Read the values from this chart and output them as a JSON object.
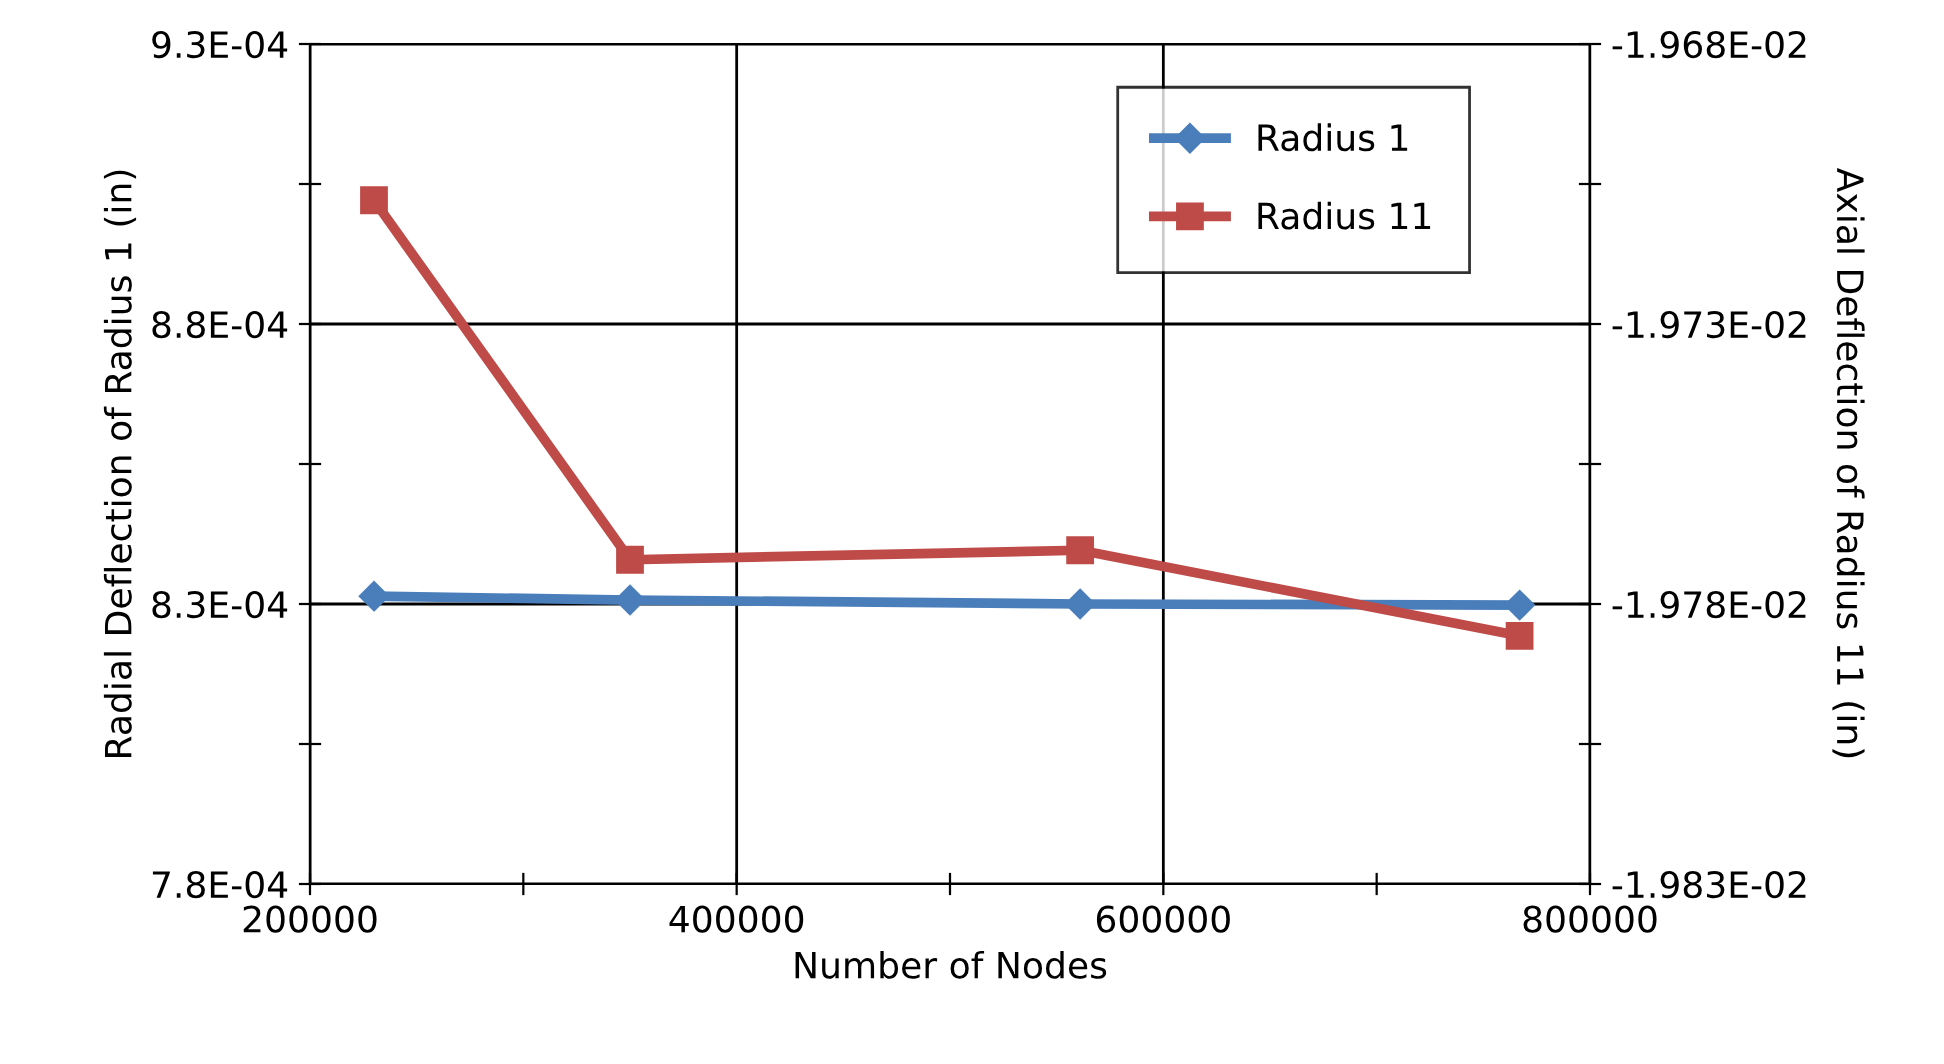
{
  "chart_data": {
    "type": "line",
    "xlabel": "Number of Nodes",
    "ylabel": "Radial Deflection of Radius 1 (in)",
    "y2label": "Axial Deflection of Radius 11 (in)",
    "xlim": [
      200000,
      800000
    ],
    "xticks": [
      200000,
      {
        "value": 300000,
        "label": null
      },
      400000,
      {
        "value": 500000,
        "label": null
      },
      600000,
      {
        "value": 700000,
        "label": null
      },
      800000
    ],
    "ylim": [
      0.00078,
      0.00093
    ],
    "yticks": [
      {
        "value": 0.00078,
        "label": "7.8E-04"
      },
      {
        "value": 0.000805,
        "label": null
      },
      {
        "value": 0.00083,
        "label": "8.3E-04"
      },
      {
        "value": 0.000855,
        "label": null
      },
      {
        "value": 0.00088,
        "label": "8.8E-04"
      },
      {
        "value": 0.000905,
        "label": null
      },
      {
        "value": 0.00093,
        "label": "9.3E-04"
      }
    ],
    "y2lim": [
      -0.01983,
      -0.01968
    ],
    "y2ticks": [
      {
        "value": -0.01983,
        "label": "-1.983E-02"
      },
      {
        "value": -0.019805,
        "label": null
      },
      {
        "value": -0.01978,
        "label": "-1.978E-02"
      },
      {
        "value": -0.019755,
        "label": null
      },
      {
        "value": -0.01973,
        "label": "-1.973E-02"
      },
      {
        "value": -0.019705,
        "label": null
      },
      {
        "value": -0.01968,
        "label": "-1.968E-02"
      }
    ],
    "grid": true,
    "legend": "top right",
    "line_style": "solid",
    "series": [
      {
        "name": "Radius 1",
        "color": "#4a7ebb",
        "marker": "diamond",
        "x": [
          230000,
          350000,
          561000,
          767000
        ],
        "values": [
          0.0008314,
          0.0008307,
          0.00083,
          0.0008298
        ]
      },
      {
        "name": "Radius 11",
        "color": "#be4b48",
        "marker": "square",
        "axis": "y2",
        "x": [
          230000,
          350000,
          561000,
          767000
        ],
        "values": [
          -0.0197079,
          -0.0197721,
          -0.0197704,
          -0.0197857
        ]
      }
    ]
  }
}
